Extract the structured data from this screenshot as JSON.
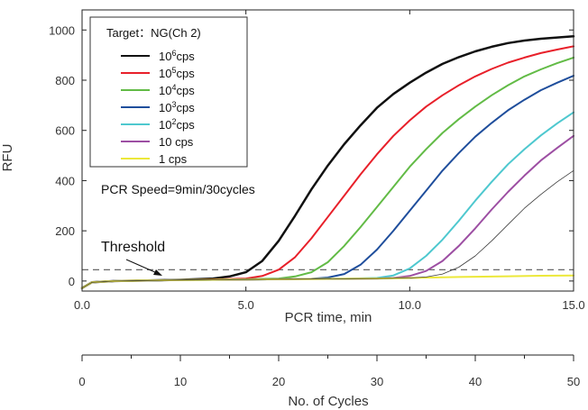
{
  "chart_data": {
    "type": "line",
    "xlabel": "PCR time, min",
    "ylabel": "RFU",
    "xlim": [
      0,
      15
    ],
    "ylim": [
      -40,
      1080
    ],
    "x_ticks": [
      "0.0",
      "5.0",
      "10.0",
      "15.0"
    ],
    "y_ticks": [
      "0",
      "200",
      "400",
      "600",
      "800",
      "1000"
    ],
    "secondary_x_axis": {
      "label": "No. of Cycles",
      "lim": [
        0,
        50
      ],
      "ticks": [
        "0",
        "10",
        "20",
        "30",
        "40",
        "50"
      ]
    },
    "threshold": {
      "label": "Threshold",
      "value": 45
    },
    "annotation": "PCR Speed=9min/30cycles",
    "legend": {
      "title": "Target：NG(Ch 2)",
      "position": "top-left"
    },
    "series": [
      {
        "name": "10^6cps",
        "base": "10",
        "exp": "6",
        "unit": "cps",
        "color": "#111111",
        "width": 2.5,
        "points": [
          [
            0,
            -28
          ],
          [
            0.3,
            -5
          ],
          [
            1,
            0
          ],
          [
            2,
            2
          ],
          [
            3,
            5
          ],
          [
            4,
            10
          ],
          [
            4.5,
            18
          ],
          [
            5,
            35
          ],
          [
            5.5,
            80
          ],
          [
            6,
            160
          ],
          [
            6.5,
            260
          ],
          [
            7,
            365
          ],
          [
            7.5,
            460
          ],
          [
            8,
            545
          ],
          [
            8.5,
            620
          ],
          [
            9,
            690
          ],
          [
            9.5,
            745
          ],
          [
            10,
            790
          ],
          [
            10.5,
            830
          ],
          [
            11,
            865
          ],
          [
            11.5,
            892
          ],
          [
            12,
            915
          ],
          [
            12.5,
            933
          ],
          [
            13,
            948
          ],
          [
            13.5,
            958
          ],
          [
            14,
            965
          ],
          [
            14.5,
            970
          ],
          [
            15,
            975
          ]
        ]
      },
      {
        "name": "10^5cps",
        "base": "10",
        "exp": "5",
        "unit": "cps",
        "color": "#e8202a",
        "width": 2,
        "points": [
          [
            0,
            -28
          ],
          [
            0.3,
            -5
          ],
          [
            1,
            0
          ],
          [
            2,
            2
          ],
          [
            3,
            4
          ],
          [
            4,
            6
          ],
          [
            5,
            10
          ],
          [
            5.5,
            20
          ],
          [
            6,
            45
          ],
          [
            6.5,
            95
          ],
          [
            7,
            170
          ],
          [
            7.5,
            255
          ],
          [
            8,
            340
          ],
          [
            8.5,
            425
          ],
          [
            9,
            505
          ],
          [
            9.5,
            578
          ],
          [
            10,
            640
          ],
          [
            10.5,
            695
          ],
          [
            11,
            740
          ],
          [
            11.5,
            780
          ],
          [
            12,
            815
          ],
          [
            12.5,
            845
          ],
          [
            13,
            870
          ],
          [
            13.5,
            890
          ],
          [
            14,
            908
          ],
          [
            14.5,
            922
          ],
          [
            15,
            935
          ]
        ]
      },
      {
        "name": "10^4cps",
        "base": "10",
        "exp": "4",
        "unit": "cps",
        "color": "#62bb46",
        "width": 2,
        "points": [
          [
            0,
            -28
          ],
          [
            0.3,
            -5
          ],
          [
            1,
            0
          ],
          [
            2,
            2
          ],
          [
            3,
            4
          ],
          [
            4,
            5
          ],
          [
            5,
            7
          ],
          [
            6,
            10
          ],
          [
            6.5,
            18
          ],
          [
            7,
            35
          ],
          [
            7.5,
            75
          ],
          [
            8,
            140
          ],
          [
            8.5,
            215
          ],
          [
            9,
            295
          ],
          [
            9.5,
            375
          ],
          [
            10,
            455
          ],
          [
            10.5,
            525
          ],
          [
            11,
            590
          ],
          [
            11.5,
            645
          ],
          [
            12,
            695
          ],
          [
            12.5,
            740
          ],
          [
            13,
            780
          ],
          [
            13.5,
            815
          ],
          [
            14,
            843
          ],
          [
            14.5,
            868
          ],
          [
            15,
            890
          ]
        ]
      },
      {
        "name": "10^3cps",
        "base": "10",
        "exp": "3",
        "unit": "cps",
        "color": "#1f4e9c",
        "width": 2,
        "points": [
          [
            0,
            -28
          ],
          [
            0.3,
            -5
          ],
          [
            1,
            0
          ],
          [
            2,
            2
          ],
          [
            3,
            4
          ],
          [
            4,
            5
          ],
          [
            5,
            6
          ],
          [
            6,
            7
          ],
          [
            7,
            9
          ],
          [
            7.5,
            14
          ],
          [
            8,
            28
          ],
          [
            8.5,
            65
          ],
          [
            9,
            125
          ],
          [
            9.5,
            200
          ],
          [
            10,
            280
          ],
          [
            10.5,
            360
          ],
          [
            11,
            440
          ],
          [
            11.5,
            510
          ],
          [
            12,
            575
          ],
          [
            12.5,
            630
          ],
          [
            13,
            680
          ],
          [
            13.5,
            722
          ],
          [
            14,
            760
          ],
          [
            14.5,
            790
          ],
          [
            15,
            818
          ]
        ]
      },
      {
        "name": "10^2cps",
        "base": "10",
        "exp": "2",
        "unit": "cps",
        "color": "#4ec8cf",
        "width": 2,
        "points": [
          [
            0,
            -28
          ],
          [
            0.3,
            -5
          ],
          [
            1,
            0
          ],
          [
            2,
            2
          ],
          [
            3,
            4
          ],
          [
            4,
            5
          ],
          [
            5,
            6
          ],
          [
            6,
            7
          ],
          [
            7,
            8
          ],
          [
            8,
            9
          ],
          [
            9,
            12
          ],
          [
            9.5,
            22
          ],
          [
            10,
            50
          ],
          [
            10.5,
            100
          ],
          [
            11,
            165
          ],
          [
            11.5,
            240
          ],
          [
            12,
            320
          ],
          [
            12.5,
            395
          ],
          [
            13,
            465
          ],
          [
            13.5,
            525
          ],
          [
            14,
            580
          ],
          [
            14.5,
            628
          ],
          [
            15,
            672
          ]
        ]
      },
      {
        "name": "10 cps",
        "base": "10",
        "exp": "",
        "unit": " cps",
        "color": "#9d4fa3",
        "width": 2,
        "points": [
          [
            0,
            -28
          ],
          [
            0.3,
            -5
          ],
          [
            1,
            0
          ],
          [
            2,
            2
          ],
          [
            3,
            4
          ],
          [
            4,
            5
          ],
          [
            5,
            6
          ],
          [
            6,
            7
          ],
          [
            7,
            8
          ],
          [
            8,
            9
          ],
          [
            9,
            10
          ],
          [
            9.5,
            12
          ],
          [
            10,
            20
          ],
          [
            10.5,
            40
          ],
          [
            11,
            80
          ],
          [
            11.5,
            140
          ],
          [
            12,
            210
          ],
          [
            12.5,
            285
          ],
          [
            13,
            355
          ],
          [
            13.5,
            420
          ],
          [
            14,
            480
          ],
          [
            14.5,
            530
          ],
          [
            15,
            578
          ]
        ]
      },
      {
        "name": "1 cps",
        "base": "1",
        "exp": "",
        "unit": " cps",
        "color": "#ece83a",
        "width": 2,
        "points": [
          [
            0,
            -28
          ],
          [
            0.3,
            -5
          ],
          [
            1,
            0
          ],
          [
            2,
            2
          ],
          [
            3,
            4
          ],
          [
            4,
            5
          ],
          [
            5,
            6
          ],
          [
            6,
            7
          ],
          [
            7,
            8
          ],
          [
            8,
            9
          ],
          [
            9,
            10
          ],
          [
            10,
            12
          ],
          [
            11,
            15
          ],
          [
            12,
            17
          ],
          [
            13,
            19
          ],
          [
            14,
            21
          ],
          [
            15,
            22
          ]
        ]
      },
      {
        "name": "",
        "color": "#3a3a3a",
        "width": 0.8,
        "points": [
          [
            0,
            -28
          ],
          [
            0.3,
            -5
          ],
          [
            1,
            0
          ],
          [
            2,
            2
          ],
          [
            3,
            4
          ],
          [
            4,
            5
          ],
          [
            5,
            6
          ],
          [
            6,
            7
          ],
          [
            7,
            8
          ],
          [
            8,
            9
          ],
          [
            9,
            10
          ],
          [
            10,
            12
          ],
          [
            10.5,
            16
          ],
          [
            11,
            28
          ],
          [
            11.5,
            55
          ],
          [
            12,
            100
          ],
          [
            12.5,
            160
          ],
          [
            13,
            225
          ],
          [
            13.5,
            290
          ],
          [
            14,
            345
          ],
          [
            14.5,
            395
          ],
          [
            15,
            440
          ]
        ]
      }
    ]
  }
}
